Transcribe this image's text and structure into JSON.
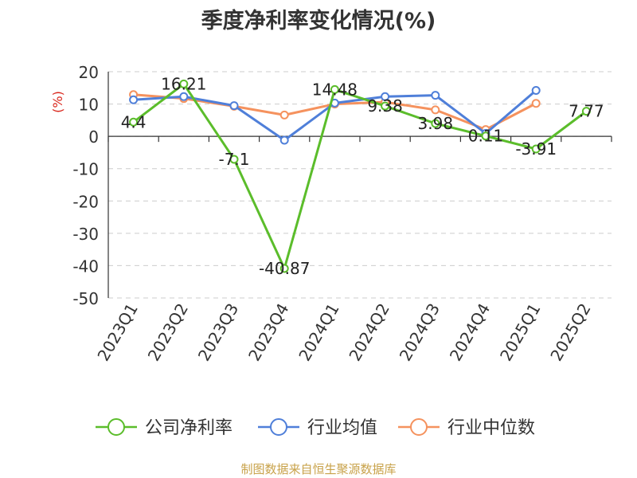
{
  "chart_data": {
    "type": "line",
    "title": "季度净利率变化情况(%)",
    "ylabel": "(%)",
    "xlabel": "",
    "categories": [
      "2023Q1",
      "2023Q2",
      "2023Q3",
      "2023Q4",
      "2024Q1",
      "2024Q2",
      "2024Q3",
      "2024Q4",
      "2025Q1",
      "2025Q2"
    ],
    "ylim": [
      -50,
      20
    ],
    "yticks": [
      "20",
      "10",
      "0",
      "-10",
      "-20",
      "-30",
      "-40",
      "-50"
    ],
    "grid": true,
    "legend_position": "bottom",
    "series": [
      {
        "name": "公司净利率",
        "color": "#5bbd2b",
        "values": [
          4.4,
          16.21,
          -7.1,
          -40.87,
          14.48,
          9.38,
          3.98,
          0.11,
          -3.91,
          7.77
        ],
        "labels": [
          "4.4",
          "16.21",
          "-7.1",
          "-40.87",
          "14.48",
          "9.38",
          "3.98",
          "0.11",
          "-3.91",
          "7.77"
        ]
      },
      {
        "name": "行业均值",
        "color": "#4f7fd9",
        "values": [
          11.3,
          12.3,
          9.5,
          -1.2,
          10.3,
          12.3,
          12.7,
          0.9,
          14.2,
          null
        ]
      },
      {
        "name": "行业中位数",
        "color": "#f5925e",
        "values": [
          12.9,
          11.7,
          9.3,
          6.6,
          10.0,
          10.6,
          8.2,
          2.1,
          10.2,
          null
        ]
      }
    ]
  },
  "source": "制图数据来自恒生聚源数据库"
}
